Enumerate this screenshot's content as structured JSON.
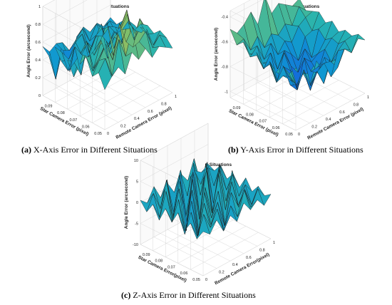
{
  "figure": {
    "captions": [
      {
        "label": "(a)",
        "text": "X-Axis Error in Different Situations"
      },
      {
        "label": "(b)",
        "text": "Y-Axis Error in Different Situations"
      },
      {
        "label": "(c)",
        "text": "Z-Axis Error in Different Situations"
      }
    ]
  },
  "chart_data": [
    {
      "type": "surface",
      "title": "X Axis Error in Different Situations",
      "xlabel": "Remote Camera Error (pixel)",
      "ylabel": "Star Camera Error (pixel)",
      "zlabel": "Angle Error (arcsecond)",
      "x_ticks": [
        "0",
        "0.2",
        "0.4",
        "0.6",
        "0.8",
        "1"
      ],
      "y_ticks": [
        "0.05",
        "0.06",
        "0.07",
        "0.08",
        "0.09"
      ],
      "z_ticks": [
        "0",
        "0.2",
        "0.4",
        "0.6",
        "0.8",
        "1"
      ],
      "xlim": [
        0,
        1
      ],
      "ylim": [
        0.05,
        0.1
      ],
      "zlim": [
        0,
        1
      ],
      "x": [
        0,
        0.1,
        0.2,
        0.3,
        0.4,
        0.5,
        0.6,
        0.7,
        0.8,
        0.9,
        1.0
      ],
      "y": [
        0.05,
        0.055,
        0.06,
        0.065,
        0.07,
        0.075,
        0.08,
        0.085,
        0.09,
        0.095,
        0.1
      ],
      "z": [
        [
          0.45,
          0.55,
          0.62,
          0.5,
          0.7,
          0.58,
          0.66,
          0.52,
          0.6,
          0.55,
          0.5
        ],
        [
          0.6,
          0.72,
          0.48,
          0.85,
          0.62,
          0.9,
          0.7,
          0.78,
          0.55,
          0.65,
          0.58
        ],
        [
          0.52,
          0.66,
          0.8,
          0.58,
          0.95,
          0.7,
          0.6,
          0.88,
          0.72,
          0.5,
          0.62
        ],
        [
          0.7,
          0.5,
          0.62,
          0.75,
          0.55,
          0.82,
          0.98,
          0.62,
          0.7,
          0.58,
          0.55
        ],
        [
          0.58,
          0.8,
          0.45,
          0.68,
          0.88,
          0.55,
          0.72,
          0.85,
          0.52,
          0.66,
          0.6
        ],
        [
          0.4,
          0.62,
          0.7,
          0.52,
          0.65,
          0.4,
          0.6,
          0.5,
          0.68,
          0.55,
          0.48
        ],
        [
          0.55,
          0.48,
          0.3,
          0.62,
          0.5,
          0.75,
          0.45,
          0.58,
          0.4,
          0.62,
          0.52
        ],
        [
          0.5,
          0.35,
          0.58,
          0.45,
          0.38,
          0.55,
          0.62,
          0.4,
          0.55,
          0.48,
          0.45
        ],
        [
          0.62,
          0.52,
          0.4,
          0.55,
          0.6,
          0.35,
          0.5,
          0.45,
          0.52,
          0.4,
          0.5
        ],
        [
          0.48,
          0.18,
          0.55,
          0.42,
          0.5,
          0.58,
          0.4,
          0.55,
          0.45,
          0.5,
          0.42
        ],
        [
          0.55,
          0.45,
          0.5,
          0.38,
          0.1,
          0.45,
          0.52,
          0.42,
          0.48,
          0.4,
          0.46
        ]
      ]
    },
    {
      "type": "surface",
      "title": "Y Axis Error in Different Situations",
      "xlabel": "Remote Camera Error (pixel)",
      "ylabel": "Star Camera Error (pixel)",
      "zlabel": "Angle Error (arcsecond)",
      "x_ticks": [
        "0",
        "0.2",
        "0.4",
        "0.6",
        "0.8",
        "1"
      ],
      "y_ticks": [
        "0.05",
        "0.06",
        "0.07",
        "0.08",
        "0.09"
      ],
      "z_ticks": [
        "-1",
        "-0.8",
        "-0.6",
        "-0.4"
      ],
      "xlim": [
        0,
        1
      ],
      "ylim": [
        0.05,
        0.1
      ],
      "zlim": [
        -1.05,
        -0.35
      ],
      "x": [
        0,
        0.1,
        0.2,
        0.3,
        0.4,
        0.5,
        0.6,
        0.7,
        0.8,
        0.9,
        1.0
      ],
      "y": [
        0.05,
        0.055,
        0.06,
        0.065,
        0.07,
        0.075,
        0.08,
        0.085,
        0.09,
        0.095,
        0.1
      ],
      "z": [
        [
          -0.55,
          -0.6,
          -0.65,
          -0.58,
          -0.7,
          -0.62,
          -0.66,
          -0.6,
          -0.64,
          -0.58,
          -0.62
        ],
        [
          -0.62,
          -0.75,
          -0.68,
          -0.8,
          -0.72,
          -0.85,
          -0.7,
          -0.78,
          -0.66,
          -0.72,
          -0.6
        ],
        [
          -0.58,
          -0.7,
          -0.82,
          -0.72,
          -0.9,
          -0.78,
          -0.74,
          -0.88,
          -0.7,
          -0.65,
          -0.64
        ],
        [
          -0.66,
          -0.72,
          -0.78,
          -0.85,
          -0.76,
          -0.92,
          -0.8,
          -0.75,
          -0.82,
          -0.7,
          -0.62
        ],
        [
          -0.6,
          -0.8,
          -0.7,
          -0.88,
          -0.95,
          -0.72,
          -0.86,
          -0.9,
          -0.74,
          -0.68,
          -0.66
        ],
        [
          -0.64,
          -0.68,
          -0.85,
          -0.76,
          -0.82,
          -1.0,
          -0.78,
          -0.84,
          -0.8,
          -0.72,
          -0.6
        ],
        [
          -0.58,
          -0.74,
          -0.72,
          -0.9,
          -0.7,
          -0.84,
          -0.92,
          -0.76,
          -0.86,
          -0.66,
          -0.64
        ],
        [
          -0.62,
          -0.66,
          -0.8,
          -0.7,
          -0.86,
          -0.74,
          -0.8,
          -0.88,
          -0.72,
          -0.7,
          -0.58
        ],
        [
          -0.55,
          -0.7,
          -0.64,
          -0.78,
          -0.68,
          -0.8,
          -0.72,
          -0.76,
          -0.66,
          -0.62,
          -0.6
        ],
        [
          -0.6,
          -0.58,
          -0.7,
          -0.62,
          -0.74,
          -0.66,
          -0.7,
          -0.64,
          -0.68,
          -0.56,
          -0.62
        ],
        [
          -0.5,
          -0.56,
          -0.52,
          -0.45,
          -0.58,
          -0.38,
          -0.55,
          -0.5,
          -0.54,
          -0.58,
          -0.55
        ]
      ]
    },
    {
      "type": "surface",
      "title": "Z Axis Error in Different Situations",
      "xlabel": "Remote Camera Error(pixel)",
      "ylabel": "Star Camera Error(pixel)",
      "zlabel": "Angle Error (arcsecond)",
      "x_ticks": [
        "0",
        "0.2",
        "0.4",
        "0.6",
        "0.8",
        "1"
      ],
      "y_ticks": [
        "0.05",
        "0.06",
        "0.07",
        "0.08",
        "0.09"
      ],
      "z_ticks": [
        "-10",
        "-5",
        "0",
        "5",
        "10"
      ],
      "xlim": [
        0,
        1
      ],
      "ylim": [
        0.05,
        0.1
      ],
      "zlim": [
        -10,
        10
      ],
      "x": [
        0,
        0.1,
        0.2,
        0.3,
        0.4,
        0.5,
        0.6,
        0.7,
        0.8,
        0.9,
        1.0
      ],
      "y": [
        0.05,
        0.055,
        0.06,
        0.065,
        0.07,
        0.075,
        0.08,
        0.085,
        0.09,
        0.095,
        0.1
      ],
      "z": [
        [
          0.5,
          -1.0,
          1.5,
          -2.0,
          0.8,
          -1.5,
          2.0,
          -0.5,
          1.0,
          -1.2,
          0.6
        ],
        [
          -2.0,
          3.0,
          -1.0,
          2.5,
          -3.5,
          1.5,
          -2.0,
          3.5,
          -1.5,
          2.0,
          -0.5
        ],
        [
          1.0,
          -3.0,
          4.0,
          -2.0,
          2.5,
          -4.0,
          3.0,
          -1.0,
          2.0,
          -2.5,
          1.0
        ],
        [
          -1.5,
          2.0,
          -4.5,
          5.0,
          -2.0,
          3.5,
          -5.5,
          4.0,
          -3.0,
          1.5,
          -1.0
        ],
        [
          2.0,
          -4.0,
          3.0,
          -6.0,
          4.5,
          -2.5,
          6.0,
          -3.5,
          5.0,
          -2.0,
          1.5
        ],
        [
          -1.0,
          3.5,
          -5.0,
          4.0,
          -7.0,
          8.5,
          -4.0,
          6.5,
          -3.0,
          2.5,
          -1.5
        ],
        [
          1.5,
          -2.5,
          4.5,
          -3.0,
          5.0,
          -5.5,
          7.0,
          -6.0,
          3.5,
          -2.0,
          1.0
        ],
        [
          -2.0,
          4.0,
          -3.5,
          6.0,
          -8.0,
          5.0,
          -6.5,
          4.5,
          -5.0,
          3.0,
          -1.0
        ],
        [
          1.0,
          -3.0,
          5.0,
          -4.5,
          3.0,
          -7.5,
          5.5,
          -3.0,
          4.0,
          -2.5,
          1.5
        ],
        [
          -1.5,
          2.0,
          -2.5,
          3.5,
          -5.0,
          4.0,
          -3.0,
          5.0,
          -2.0,
          1.0,
          -0.5
        ],
        [
          0.5,
          -1.0,
          2.0,
          -1.5,
          1.0,
          -2.0,
          1.5,
          -1.0,
          0.5,
          -0.8,
          0.3
        ]
      ]
    }
  ]
}
